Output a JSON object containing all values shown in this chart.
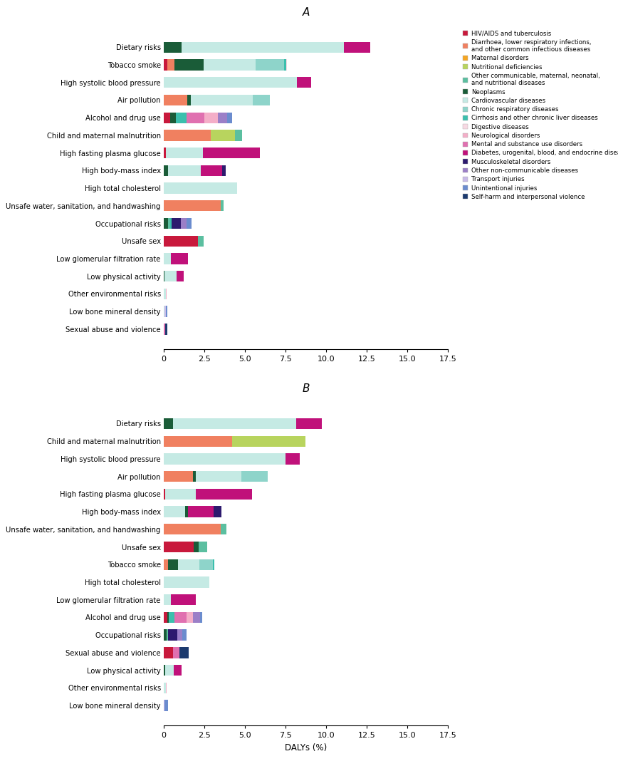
{
  "colors": {
    "HIV/AIDS and tuberculosis": "#c8193c",
    "Diarrhoea": "#f08060",
    "Maternal disorders": "#f5a623",
    "Nutritional deficiencies": "#b8d45e",
    "Other communicable": "#5bbfa0",
    "Neoplasms": "#1a5c38",
    "Cardiovascular diseases": "#c5eae4",
    "Chronic respiratory diseases": "#8ed4ca",
    "Cirrhosis": "#3bbfad",
    "Digestive diseases": "#f7d9e3",
    "Neurological disorders": "#f4aec8",
    "Mental and substance use disorders": "#e070b0",
    "Diabetes": "#c0117a",
    "Musculoskeletal disorders": "#2d1a6e",
    "Other non-communicable diseases": "#9b7fc7",
    "Transport injuries": "#c9bbe8",
    "Unintentional injuries": "#6b8cce",
    "Self-harm and interpersonal violence": "#1c3a6e"
  },
  "legend_colors": {
    "HIV/AIDS and tuberculosis": "#c8193c",
    "Diarrhoea, lower respiratory infections,\nand other common infectious diseases": "#f08060",
    "Maternal disorders": "#f5a623",
    "Nutritional deficiencies": "#b8d45e",
    "Other communicable, maternal, neonatal,\nand nutritional diseases": "#5bbfa0",
    "Neoplasms": "#1a5c38",
    "Cardiovascular diseases": "#c5eae4",
    "Chronic respiratory diseases": "#8ed4ca",
    "Cirrhosis and other chronic liver diseases": "#3bbfad",
    "Digestive diseases": "#f7d9e3",
    "Neurological disorders": "#f4aec8",
    "Mental and substance use disorders": "#e070b0",
    "Diabetes, urogenital, blood, and endocrine diseases": "#c0117a",
    "Musculoskeletal disorders": "#2d1a6e",
    "Other non-communicable diseases": "#9b7fc7",
    "Transport injuries": "#c9bbe8",
    "Unintentional injuries": "#6b8cce",
    "Self-harm and interpersonal violence": "#1c3a6e"
  },
  "panel_A": {
    "risks": [
      "Dietary risks",
      "Tobacco smoke",
      "High systolic blood pressure",
      "Air pollution",
      "Alcohol and drug use",
      "Child and maternal malnutrition",
      "High fasting plasma glucose",
      "High body-mass index",
      "High total cholesterol",
      "Unsafe water, sanitation, and handwashing",
      "Occupational risks",
      "Unsafe sex",
      "Low glomerular filtration rate",
      "Low physical activity",
      "Other environmental risks",
      "Low bone mineral density",
      "Sexual abuse and violence"
    ],
    "segments": {
      "Dietary risks": [
        [
          "Neoplasms",
          1.1
        ],
        [
          "Cardiovascular diseases",
          10.0
        ],
        [
          "Diabetes",
          1.6
        ]
      ],
      "Tobacco smoke": [
        [
          "HIV/AIDS and tuberculosis",
          0.2
        ],
        [
          "Diarrhoea",
          0.45
        ],
        [
          "Neoplasms",
          1.8
        ],
        [
          "Cardiovascular diseases",
          3.2
        ],
        [
          "Chronic respiratory diseases",
          1.75
        ],
        [
          "Cirrhosis",
          0.12
        ],
        [
          "Digestive diseases",
          0.07
        ]
      ],
      "High systolic blood pressure": [
        [
          "Cardiovascular diseases",
          8.2
        ],
        [
          "Diabetes",
          0.85
        ]
      ],
      "Air pollution": [
        [
          "Diarrhoea",
          1.45
        ],
        [
          "Neoplasms",
          0.22
        ],
        [
          "Cardiovascular diseases",
          3.8
        ],
        [
          "Chronic respiratory diseases",
          1.05
        ]
      ],
      "Alcohol and drug use": [
        [
          "HIV/AIDS and tuberculosis",
          0.38
        ],
        [
          "Neoplasms",
          0.38
        ],
        [
          "Cirrhosis",
          0.62
        ],
        [
          "Mental and substance use disorders",
          1.1
        ],
        [
          "Neurological disorders",
          0.85
        ],
        [
          "Other non-communicable diseases",
          0.55
        ],
        [
          "Unintentional injuries",
          0.32
        ]
      ],
      "Child and maternal malnutrition": [
        [
          "Diarrhoea",
          2.9
        ],
        [
          "Nutritional deficiencies",
          1.5
        ],
        [
          "Other communicable",
          0.4
        ]
      ],
      "High fasting plasma glucose": [
        [
          "HIV/AIDS and tuberculosis",
          0.12
        ],
        [
          "Cardiovascular diseases",
          2.3
        ],
        [
          "Diabetes",
          3.5
        ]
      ],
      "High body-mass index": [
        [
          "Neoplasms",
          0.28
        ],
        [
          "Cardiovascular diseases",
          2.0
        ],
        [
          "Diabetes",
          1.3
        ],
        [
          "Musculoskeletal disorders",
          0.22
        ]
      ],
      "High total cholesterol": [
        [
          "Cardiovascular diseases",
          4.5
        ]
      ],
      "Unsafe water, sanitation, and handwashing": [
        [
          "Diarrhoea",
          3.5
        ],
        [
          "Other communicable",
          0.18
        ]
      ],
      "Occupational risks": [
        [
          "Neoplasms",
          0.28
        ],
        [
          "Other communicable",
          0.12
        ],
        [
          "Cirrhosis",
          0.08
        ],
        [
          "Musculoskeletal disorders",
          0.55
        ],
        [
          "Other non-communicable diseases",
          0.38
        ],
        [
          "Unintentional injuries",
          0.32
        ]
      ],
      "Unsafe sex": [
        [
          "HIV/AIDS and tuberculosis",
          2.1
        ],
        [
          "Other communicable",
          0.35
        ]
      ],
      "Low glomerular filtration rate": [
        [
          "Cardiovascular diseases",
          0.45
        ],
        [
          "Diabetes",
          1.05
        ]
      ],
      "Low physical activity": [
        [
          "Neoplasms",
          0.05
        ],
        [
          "Cardiovascular diseases",
          0.75
        ],
        [
          "Diabetes",
          0.42
        ]
      ],
      "Other environmental risks": [
        [
          "Cardiovascular diseases",
          0.12
        ],
        [
          "Neurological disorders",
          0.06
        ]
      ],
      "Low bone mineral density": [
        [
          "Cardiovascular diseases",
          0.06
        ],
        [
          "Transport injuries",
          0.08
        ],
        [
          "Unintentional injuries",
          0.1
        ]
      ],
      "Sexual abuse and violence": [
        [
          "Mental and substance use disorders",
          0.08
        ],
        [
          "Self-harm and interpersonal violence",
          0.15
        ]
      ]
    }
  },
  "panel_B": {
    "risks": [
      "Dietary risks",
      "Child and maternal malnutrition",
      "High systolic blood pressure",
      "Air pollution",
      "High fasting plasma glucose",
      "High body-mass index",
      "Unsafe water, sanitation, and handwashing",
      "Unsafe sex",
      "Tobacco smoke",
      "High total cholesterol",
      "Low glomerular filtration rate",
      "Alcohol and drug use",
      "Occupational risks",
      "Sexual abuse and violence",
      "Low physical activity",
      "Other environmental risks",
      "Low bone mineral density"
    ],
    "segments": {
      "Dietary risks": [
        [
          "Neoplasms",
          0.55
        ],
        [
          "Cardiovascular diseases",
          7.6
        ],
        [
          "Diabetes",
          1.6
        ]
      ],
      "Child and maternal malnutrition": [
        [
          "Diarrhoea",
          4.2
        ],
        [
          "Nutritional deficiencies",
          4.5
        ]
      ],
      "High systolic blood pressure": [
        [
          "Cardiovascular diseases",
          7.5
        ],
        [
          "Diabetes",
          0.85
        ]
      ],
      "Air pollution": [
        [
          "Diarrhoea",
          1.8
        ],
        [
          "Neoplasms",
          0.18
        ],
        [
          "Cardiovascular diseases",
          2.8
        ],
        [
          "Chronic respiratory diseases",
          1.6
        ]
      ],
      "High fasting plasma glucose": [
        [
          "HIV/AIDS and tuberculosis",
          0.1
        ],
        [
          "Cardiovascular diseases",
          1.85
        ],
        [
          "Diabetes",
          3.5
        ]
      ],
      "High body-mass index": [
        [
          "Cardiovascular diseases",
          1.3
        ],
        [
          "Neoplasms",
          0.2
        ],
        [
          "Diabetes",
          1.55
        ],
        [
          "Musculoskeletal disorders",
          0.5
        ]
      ],
      "Unsafe water, sanitation, and handwashing": [
        [
          "Diarrhoea",
          3.5
        ],
        [
          "Other communicable",
          0.35
        ]
      ],
      "Unsafe sex": [
        [
          "HIV/AIDS and tuberculosis",
          1.85
        ],
        [
          "Neoplasms",
          0.28
        ],
        [
          "Other communicable",
          0.55
        ]
      ],
      "Tobacco smoke": [
        [
          "Diarrhoea",
          0.28
        ],
        [
          "Neoplasms",
          0.6
        ],
        [
          "Cardiovascular diseases",
          1.3
        ],
        [
          "Chronic respiratory diseases",
          0.85
        ],
        [
          "Cirrhosis",
          0.08
        ]
      ],
      "High total cholesterol": [
        [
          "Cardiovascular diseases",
          2.8
        ]
      ],
      "Low glomerular filtration rate": [
        [
          "Cardiovascular diseases",
          0.45
        ],
        [
          "Diabetes",
          1.5
        ]
      ],
      "Alcohol and drug use": [
        [
          "HIV/AIDS and tuberculosis",
          0.2
        ],
        [
          "Neoplasms",
          0.12
        ],
        [
          "Cirrhosis",
          0.35
        ],
        [
          "Mental and substance use disorders",
          0.75
        ],
        [
          "Neurological disorders",
          0.38
        ],
        [
          "Other non-communicable diseases",
          0.42
        ],
        [
          "Unintentional injuries",
          0.15
        ]
      ],
      "Occupational risks": [
        [
          "Neoplasms",
          0.18
        ],
        [
          "Other communicable",
          0.08
        ],
        [
          "Musculoskeletal disorders",
          0.55
        ],
        [
          "Other non-communicable diseases",
          0.35
        ],
        [
          "Unintentional injuries",
          0.25
        ]
      ],
      "Sexual abuse and violence": [
        [
          "HIV/AIDS and tuberculosis",
          0.55
        ],
        [
          "Mental and substance use disorders",
          0.42
        ],
        [
          "Self-harm and interpersonal violence",
          0.55
        ]
      ],
      "Low physical activity": [
        [
          "Neoplasms",
          0.08
        ],
        [
          "Cardiovascular diseases",
          0.55
        ],
        [
          "Diabetes",
          0.45
        ]
      ],
      "Other environmental risks": [
        [
          "Cardiovascular diseases",
          0.12
        ],
        [
          "Neurological disorders",
          0.05
        ]
      ],
      "Low bone mineral density": [
        [
          "Transport injuries",
          0.05
        ],
        [
          "Unintentional injuries",
          0.2
        ]
      ]
    }
  },
  "xlim": [
    0,
    17.5
  ],
  "xticks": [
    0,
    2.5,
    5.0,
    7.5,
    10.0,
    12.5,
    15.0,
    17.5
  ],
  "xtick_labels": [
    "0",
    "2.5",
    "5.0",
    "7.5",
    "10.0",
    "12.5",
    "15.0",
    "17.5"
  ],
  "xlabel": "DALYs (%)",
  "background_color": "#ffffff",
  "legend_labels": [
    "HIV/AIDS and tuberculosis",
    "Diarrhoea, lower respiratory infections,\nand other common infectious diseases",
    "Maternal disorders",
    "Nutritional deficiencies",
    "Other communicable, maternal, neonatal,\nand nutritional diseases",
    "Neoplasms",
    "Cardiovascular diseases",
    "Chronic respiratory diseases",
    "Cirrhosis and other chronic liver diseases",
    "Digestive diseases",
    "Neurological disorders",
    "Mental and substance use disorders",
    "Diabetes, urogenital, blood, and endocrine diseases",
    "Musculoskeletal disorders",
    "Other non-communicable diseases",
    "Transport injuries",
    "Unintentional injuries",
    "Self-harm and interpersonal violence"
  ]
}
